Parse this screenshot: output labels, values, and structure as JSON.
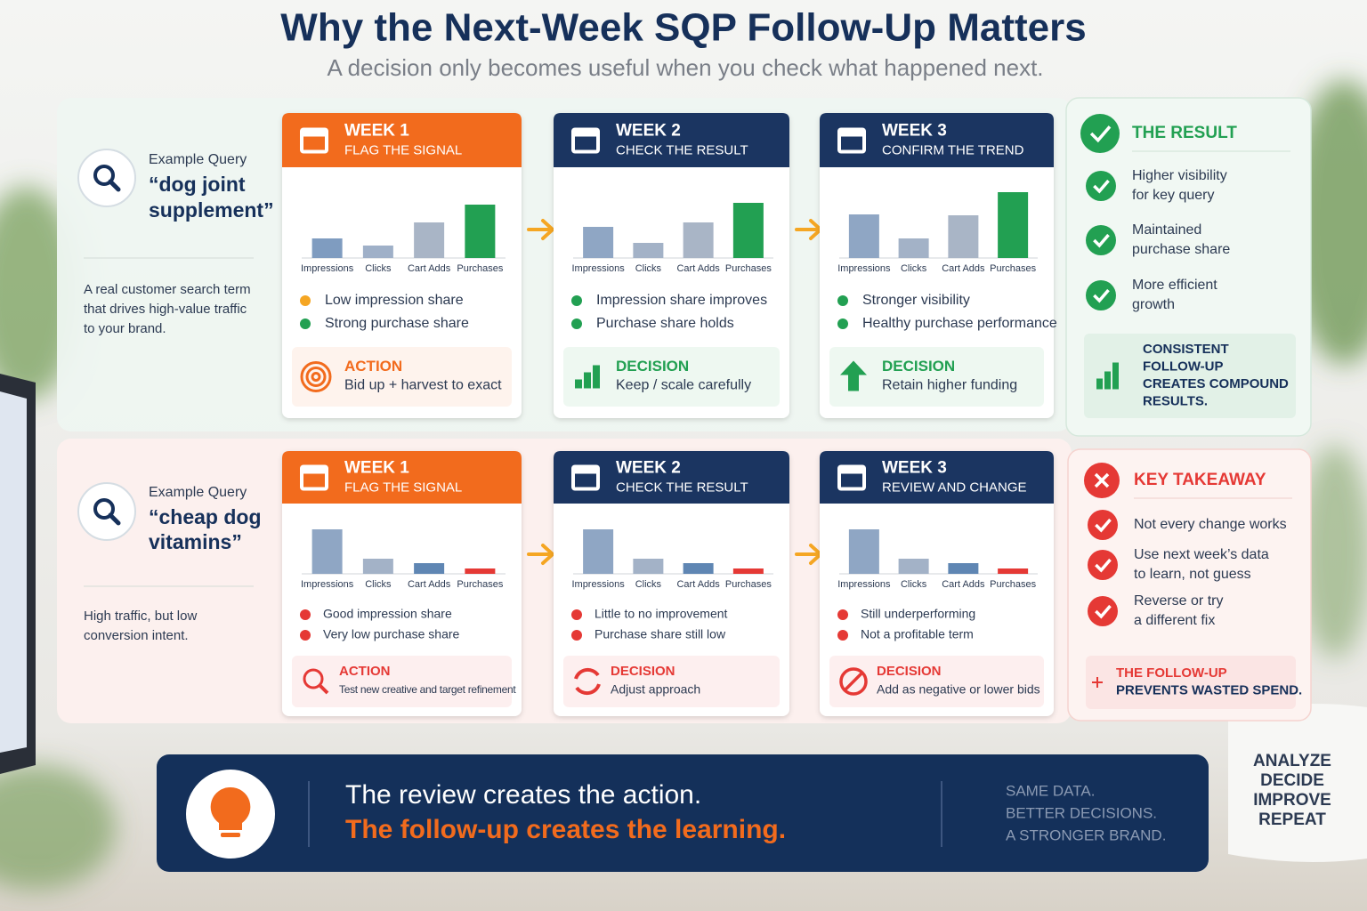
{
  "header": {
    "title": "Why the Next-Week SQP Follow-Up Matters",
    "subtitle": "A decision only becomes useful when you check what happened next."
  },
  "rows": [
    {
      "query_label": "Example Query",
      "query": [
        "“dog joint",
        "supplement”"
      ],
      "description": [
        "A real customer search term",
        "that drives high-value traffic",
        "to your brand."
      ],
      "weeks": [
        {
          "week": "WEEK 1",
          "stage": "FLAG THE SIGNAL",
          "header_color": "#f26b1d",
          "chart": {
            "categories": [
              "Impressions",
              "Clicks",
              "Cart Adds",
              "Purchases"
            ],
            "values": [
              22,
              14,
              40,
              60
            ],
            "colors": [
              "#7f9cc0",
              "#9fb0c8",
              "#a9b5c6",
              "#22a052"
            ]
          },
          "bullets": [
            {
              "text": "Low impression share",
              "color": "#f5a623"
            },
            {
              "text": "Strong purchase share",
              "color": "#22a052"
            }
          ],
          "box": {
            "label": "ACTION",
            "text": "Bid up + harvest to exact",
            "color": "#f26b1d"
          }
        },
        {
          "week": "WEEK 2",
          "stage": "CHECK THE RESULT",
          "header_color": "#1b3561",
          "chart": {
            "categories": [
              "Impressions",
              "Clicks",
              "Cart Adds",
              "Purchases"
            ],
            "values": [
              35,
              17,
              40,
              62
            ],
            "colors": [
              "#8fa6c4",
              "#a3b2c7",
              "#a9b5c6",
              "#22a052"
            ]
          },
          "bullets": [
            {
              "text": "Impression share improves",
              "color": "#22a052"
            },
            {
              "text": "Purchase share holds",
              "color": "#22a052"
            }
          ],
          "box": {
            "label": "DECISION",
            "text": "Keep / scale carefully",
            "color": "#22a052"
          }
        },
        {
          "week": "WEEK 3",
          "stage": "CONFIRM THE TREND",
          "header_color": "#1b3561",
          "chart": {
            "categories": [
              "Impressions",
              "Clicks",
              "Cart Adds",
              "Purchases"
            ],
            "values": [
              49,
              22,
              48,
              74
            ],
            "colors": [
              "#8fa6c4",
              "#a3b2c7",
              "#a9b5c6",
              "#22a052"
            ]
          },
          "bullets": [
            {
              "text": "Stronger visibility",
              "color": "#22a052"
            },
            {
              "text": "Healthy purchase performance",
              "color": "#22a052"
            }
          ],
          "box": {
            "label": "DECISION",
            "text": "Retain higher funding",
            "color": "#22a052"
          }
        }
      ],
      "summary": {
        "title": "THE RESULT",
        "color": "#22a052",
        "items": [
          [
            "Higher visibility",
            "for key query"
          ],
          [
            "Maintained",
            "purchase share"
          ],
          [
            "More efficient",
            "growth"
          ]
        ],
        "note": [
          "CONSISTENT",
          "FOLLOW-UP",
          "CREATES COMPOUND",
          "RESULTS."
        ]
      }
    },
    {
      "query_label": "Example Query",
      "query": [
        "“cheap dog",
        "vitamins”"
      ],
      "description": [
        "High traffic, but low",
        "conversion intent."
      ],
      "weeks": [
        {
          "week": "WEEK 1",
          "stage": "FLAG THE SIGNAL",
          "header_color": "#f26b1d",
          "chart": {
            "categories": [
              "Impressions",
              "Clicks",
              "Cart Adds",
              "Purchases"
            ],
            "values": [
              50,
              17,
              12,
              6
            ],
            "colors": [
              "#8fa6c4",
              "#a3b2c7",
              "#5f86b3",
              "#e53935"
            ]
          },
          "bullets": [
            {
              "text": "Good impression share",
              "color": "#e53935"
            },
            {
              "text": "Very low purchase share",
              "color": "#e53935"
            }
          ],
          "box": {
            "label": "ACTION",
            "text": "Test new creative and target refinement",
            "color": "#e53935"
          }
        },
        {
          "week": "WEEK 2",
          "stage": "CHECK THE RESULT",
          "header_color": "#1b3561",
          "chart": {
            "categories": [
              "Impressions",
              "Clicks",
              "Cart Adds",
              "Purchases"
            ],
            "values": [
              50,
              17,
              12,
              6
            ],
            "colors": [
              "#8fa6c4",
              "#a3b2c7",
              "#5f86b3",
              "#e53935"
            ]
          },
          "bullets": [
            {
              "text": "Little to no improvement",
              "color": "#e53935"
            },
            {
              "text": "Purchase share still low",
              "color": "#e53935"
            }
          ],
          "box": {
            "label": "DECISION",
            "text": "Adjust approach",
            "color": "#e53935"
          }
        },
        {
          "week": "WEEK 3",
          "stage": "REVIEW AND CHANGE",
          "header_color": "#1b3561",
          "chart": {
            "categories": [
              "Impressions",
              "Clicks",
              "Cart Adds",
              "Purchases"
            ],
            "values": [
              50,
              17,
              12,
              6
            ],
            "colors": [
              "#8fa6c4",
              "#a3b2c7",
              "#5f86b3",
              "#e53935"
            ]
          },
          "bullets": [
            {
              "text": "Still underperforming",
              "color": "#e53935"
            },
            {
              "text": "Not a profitable term",
              "color": "#e53935"
            }
          ],
          "box": {
            "label": "DECISION",
            "text": "Add as negative or lower bids",
            "color": "#e53935"
          }
        }
      ],
      "summary": {
        "title": "KEY TAKEAWAY",
        "color": "#e53935",
        "items": [
          [
            "Not every change works"
          ],
          [
            "Use next week’s data",
            "to learn, not guess"
          ],
          [
            "Reverse or try",
            "a different fix"
          ]
        ],
        "note": [
          "THE FOLLOW-UP",
          "PREVENTS WASTED SPEND."
        ]
      }
    }
  ],
  "banner": {
    "line1": "The review creates the action.",
    "line2": "The follow-up creates the learning.",
    "tagline": [
      "SAME DATA.",
      "BETTER DECISIONS.",
      "A STRONGER BRAND."
    ]
  },
  "mug": [
    "ANALYZE",
    "DECIDE",
    "IMPROVE",
    "REPEAT"
  ]
}
